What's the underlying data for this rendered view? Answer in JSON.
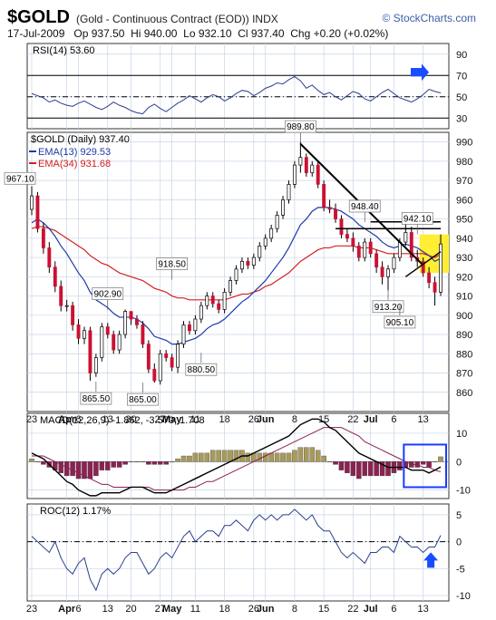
{
  "header": {
    "symbol": "$GOLD",
    "name": "(Gold - Continuous Contract (EOD))",
    "exchange": "INDX",
    "brand": "© StockCharts.com",
    "date": "17-Jul-2009",
    "op": "Op 937.50",
    "hi": "Hi 940.00",
    "lo": "Lo 932.10",
    "cl": "Cl 937.40",
    "chg": "Chg +0.20 (+0.02%)"
  },
  "colors": {
    "up": "#ffffff",
    "down": "#cc1133",
    "ema13": "#1f3aa8",
    "ema34": "#d42020",
    "macd": "#000000",
    "signal": "#8b2252",
    "hist_pos": "#a89a5a",
    "hist_neg": "#8b2252",
    "highlight": "#ffee33",
    "annot": "#1a4cff",
    "grid": "#c8d4e8"
  },
  "chart_data": [
    {
      "type": "line",
      "panel": "RSI",
      "label": "RSI(14) 53.60",
      "ylim": [
        20,
        100
      ],
      "y_ticks": [
        "90",
        "70",
        "50",
        "30"
      ],
      "reference_lines": [
        70,
        50,
        30
      ],
      "values": [
        53,
        51,
        49,
        45,
        47,
        44,
        42,
        41,
        44,
        46,
        43,
        40,
        38,
        41,
        45,
        42,
        40,
        37,
        35,
        34,
        40,
        43,
        39,
        36,
        40,
        44,
        47,
        51,
        48,
        45,
        49,
        52,
        50,
        46,
        49,
        53,
        56,
        55,
        51,
        54,
        58,
        60,
        63,
        62,
        66,
        69,
        65,
        58,
        61,
        56,
        52,
        54,
        50,
        47,
        51,
        55,
        53,
        48,
        46,
        50,
        54,
        57,
        53,
        49,
        47,
        45,
        48,
        52,
        57,
        55,
        53.6
      ]
    },
    {
      "type": "candlestick",
      "panel": "Price",
      "label": "$GOLD (Daily) 937.40",
      "legend": [
        {
          "name": "EMA(13) 929.53"
        },
        {
          "name": "EMA(34) 931.68"
        }
      ],
      "ylim": [
        850,
        995
      ],
      "y_ticks": [
        "990",
        "980",
        "970",
        "960",
        "950",
        "940",
        "930",
        "920",
        "910",
        "900",
        "890",
        "880",
        "870",
        "860"
      ],
      "x_ticks": [
        "23",
        "Apr",
        "6",
        "13",
        "20",
        "27",
        "May",
        "11",
        "18",
        "26",
        "Jun",
        "8",
        "15",
        "22",
        "Jul",
        "6",
        "13"
      ],
      "annotations": [
        "967.10",
        "902.90",
        "918.50",
        "865.50",
        "865.00",
        "880.50",
        "989.80",
        "948.40",
        "942.10",
        "913.20",
        "905.10"
      ],
      "open": [
        955,
        962,
        945,
        935,
        925,
        915,
        905,
        905,
        895,
        888,
        892,
        870,
        878,
        894,
        890,
        882,
        890,
        902,
        898,
        895,
        885,
        872,
        866,
        880,
        878,
        873,
        885,
        895,
        892,
        898,
        905,
        910,
        906,
        903,
        912,
        918,
        924,
        928,
        926,
        930,
        936,
        940,
        945,
        952,
        960,
        968,
        978,
        982,
        974,
        978,
        968,
        956,
        955,
        950,
        942,
        940,
        936,
        930,
        938,
        932,
        925,
        920,
        924,
        930,
        938,
        943,
        930,
        928,
        922,
        917,
        912
      ],
      "close": [
        962,
        945,
        935,
        925,
        915,
        905,
        905,
        895,
        888,
        892,
        870,
        878,
        894,
        890,
        882,
        890,
        902,
        898,
        895,
        885,
        872,
        866,
        880,
        878,
        873,
        885,
        895,
        892,
        898,
        905,
        910,
        906,
        903,
        912,
        918,
        924,
        928,
        926,
        930,
        936,
        940,
        945,
        952,
        960,
        968,
        978,
        982,
        974,
        978,
        968,
        956,
        955,
        950,
        942,
        940,
        936,
        930,
        938,
        932,
        925,
        920,
        924,
        930,
        938,
        943,
        930,
        928,
        922,
        917,
        912,
        937
      ],
      "high": [
        967,
        964,
        948,
        938,
        928,
        918,
        908,
        907,
        898,
        894,
        894,
        880,
        896,
        896,
        892,
        892,
        903,
        902,
        900,
        897,
        887,
        875,
        882,
        882,
        880,
        887,
        897,
        897,
        900,
        907,
        912,
        912,
        908,
        914,
        920,
        926,
        930,
        930,
        932,
        938,
        942,
        947,
        954,
        962,
        970,
        980,
        990,
        984,
        980,
        980,
        970,
        960,
        958,
        952,
        945,
        943,
        938,
        940,
        940,
        934,
        928,
        926,
        932,
        940,
        948,
        946,
        934,
        930,
        925,
        920,
        942
      ],
      "low": [
        952,
        943,
        932,
        922,
        912,
        902,
        902,
        892,
        885,
        885,
        866,
        868,
        876,
        888,
        880,
        880,
        888,
        895,
        893,
        883,
        870,
        865,
        864,
        876,
        871,
        870,
        883,
        890,
        890,
        896,
        903,
        904,
        901,
        901,
        910,
        916,
        922,
        924,
        924,
        928,
        934,
        938,
        943,
        950,
        958,
        966,
        974,
        972,
        972,
        966,
        954,
        953,
        948,
        940,
        938,
        933,
        928,
        928,
        930,
        922,
        916,
        913,
        922,
        928,
        936,
        928,
        925,
        920,
        914,
        905,
        910
      ],
      "ema13": [
        948,
        950,
        948,
        945,
        941,
        936,
        932,
        927,
        922,
        918,
        912,
        908,
        906,
        904,
        901,
        899,
        899,
        899,
        898,
        896,
        893,
        889,
        888,
        887,
        885,
        885,
        886,
        887,
        888,
        890,
        893,
        895,
        896,
        898,
        901,
        904,
        907,
        909,
        912,
        915,
        918,
        922,
        926,
        930,
        935,
        941,
        947,
        950,
        954,
        956,
        956,
        956,
        955,
        954,
        952,
        950,
        947,
        945,
        943,
        941,
        938,
        936,
        935,
        936,
        937,
        936,
        935,
        933,
        931,
        928,
        929.53
      ],
      "ema34": [
        945,
        946,
        946,
        945,
        944,
        942,
        940,
        938,
        936,
        934,
        931,
        929,
        927,
        926,
        924,
        922,
        921,
        920,
        919,
        918,
        916,
        914,
        913,
        912,
        910,
        909,
        909,
        908,
        908,
        908,
        908,
        908,
        908,
        908,
        909,
        910,
        911,
        911,
        912,
        913,
        915,
        916,
        918,
        920,
        922,
        925,
        928,
        930,
        932,
        934,
        935,
        935,
        936,
        936,
        936,
        936,
        935,
        935,
        935,
        934,
        933,
        932,
        932,
        932,
        932,
        932,
        932,
        932,
        931,
        930,
        931.68
      ]
    },
    {
      "type": "line",
      "panel": "MACD",
      "label": "MACD(12,26,9) -1.862, -3.570, 1.708",
      "ylim": [
        -13,
        17
      ],
      "y_ticks": [
        "10",
        "0",
        "-10"
      ],
      "macd": [
        3,
        2,
        1,
        -1,
        -3,
        -5,
        -7,
        -8,
        -10,
        -11,
        -12,
        -12,
        -11,
        -11,
        -11,
        -11,
        -10,
        -9,
        -9,
        -9,
        -10,
        -11,
        -11,
        -11,
        -10,
        -9,
        -8,
        -7,
        -6,
        -5,
        -4,
        -3,
        -2,
        -1,
        0,
        1,
        2,
        2,
        3,
        4,
        5,
        6,
        7,
        8,
        9,
        11,
        13,
        14,
        15,
        15,
        14,
        12,
        11,
        9,
        7,
        5,
        3,
        2,
        1,
        0,
        -1,
        -2,
        -2,
        -2,
        -2,
        -3,
        -3,
        -3,
        -4,
        -3,
        -1.862
      ],
      "signal": [
        2,
        2,
        2,
        1,
        0,
        -1,
        -2,
        -3,
        -4,
        -5,
        -6,
        -7,
        -8,
        -8,
        -9,
        -9,
        -9,
        -9,
        -9,
        -9,
        -9,
        -10,
        -10,
        -10,
        -10,
        -10,
        -10,
        -9,
        -9,
        -8,
        -7,
        -7,
        -6,
        -5,
        -4,
        -3,
        -2,
        -1,
        0,
        1,
        2,
        3,
        4,
        5,
        6,
        7,
        8,
        9,
        10,
        11,
        12,
        12,
        12,
        12,
        11,
        10,
        9,
        7,
        6,
        5,
        4,
        3,
        2,
        1,
        0,
        -1,
        -1,
        -2,
        -2,
        -3,
        -3.57
      ],
      "histogram": [
        1,
        0,
        -1,
        -2,
        -3,
        -4,
        -5,
        -5,
        -6,
        -6,
        -6,
        -5,
        -3,
        -3,
        -2,
        -2,
        -1,
        0,
        0,
        0,
        -1,
        -1,
        -1,
        -1,
        0,
        1,
        2,
        2,
        3,
        3,
        3,
        4,
        4,
        4,
        4,
        4,
        4,
        3,
        3,
        3,
        3,
        3,
        3,
        3,
        3,
        4,
        5,
        5,
        5,
        4,
        2,
        0,
        -1,
        -3,
        -4,
        -5,
        -6,
        -5,
        -5,
        -5,
        -5,
        -5,
        -4,
        -3,
        -2,
        -2,
        -2,
        -1,
        -2,
        0,
        1.708
      ]
    },
    {
      "type": "line",
      "panel": "ROC",
      "label": "ROC(12) 1.17%",
      "ylim": [
        -11,
        7
      ],
      "y_ticks": [
        "5",
        "0",
        "-5",
        "-10"
      ],
      "reference_lines": [
        0
      ],
      "values": [
        1,
        0,
        -1,
        -2,
        0,
        -3,
        -5,
        -6,
        -4,
        -3,
        -7,
        -9,
        -6,
        -5,
        -6,
        -5,
        -3,
        -2,
        -2,
        -4,
        -6,
        -5,
        -3,
        -2,
        -3,
        -1,
        1,
        2,
        0,
        1,
        2,
        2,
        1,
        3,
        3,
        4,
        3,
        2,
        4,
        5,
        4,
        5,
        4,
        5,
        5,
        6,
        5,
        4,
        5,
        3,
        2,
        2,
        0,
        -2,
        -3,
        -2,
        -3,
        -4,
        -2,
        -2,
        -1,
        -1,
        -2,
        1,
        0,
        -1,
        -1,
        -2,
        -1,
        -1,
        1.17
      ]
    }
  ]
}
